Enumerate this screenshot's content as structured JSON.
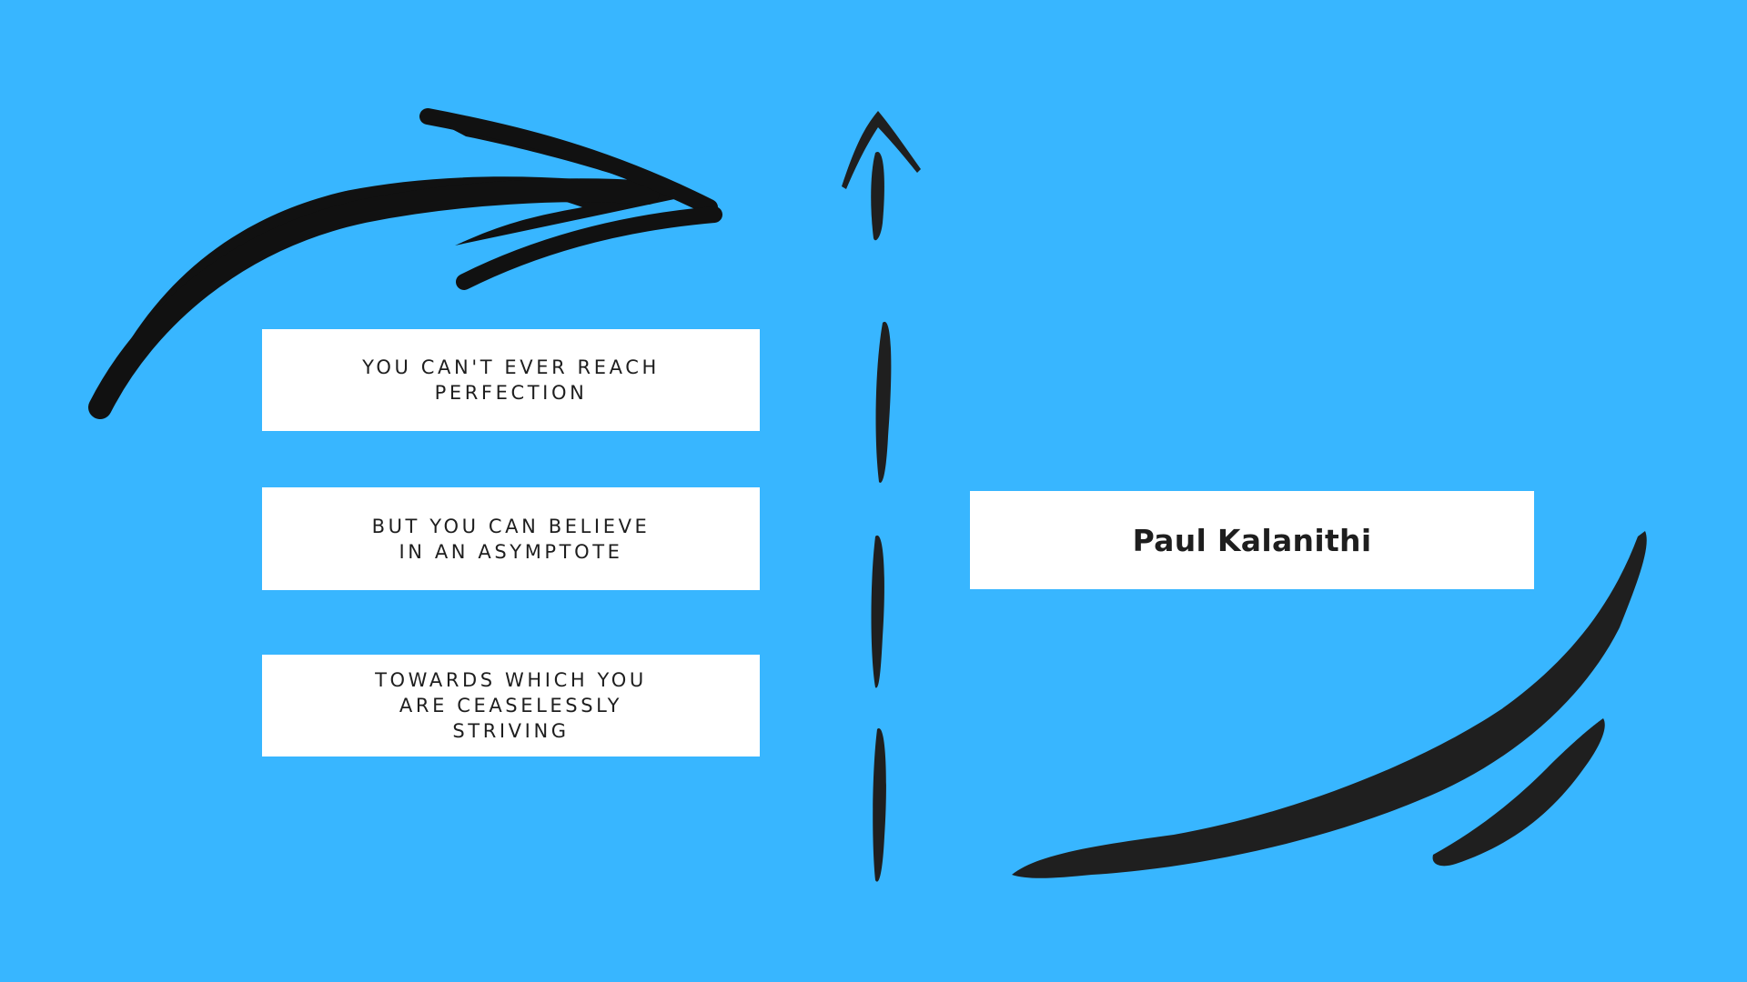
{
  "quote": {
    "lines": [
      "YOU CAN'T EVER REACH PERFECTION",
      "BUT YOU CAN BELIEVE IN AN ASYMPTOTE",
      "TOWARDS WHICH YOU ARE CEASELESSLY STRIVING"
    ],
    "author": "Paul Kalanithi"
  },
  "colors": {
    "background": "#38b6ff",
    "box": "#ffffff",
    "text": "#1e1e1e",
    "stroke": "#1f1f1f"
  },
  "icons": [
    "curved-arrow-icon",
    "dashed-up-arrow-icon",
    "swoosh-stroke-icon"
  ]
}
